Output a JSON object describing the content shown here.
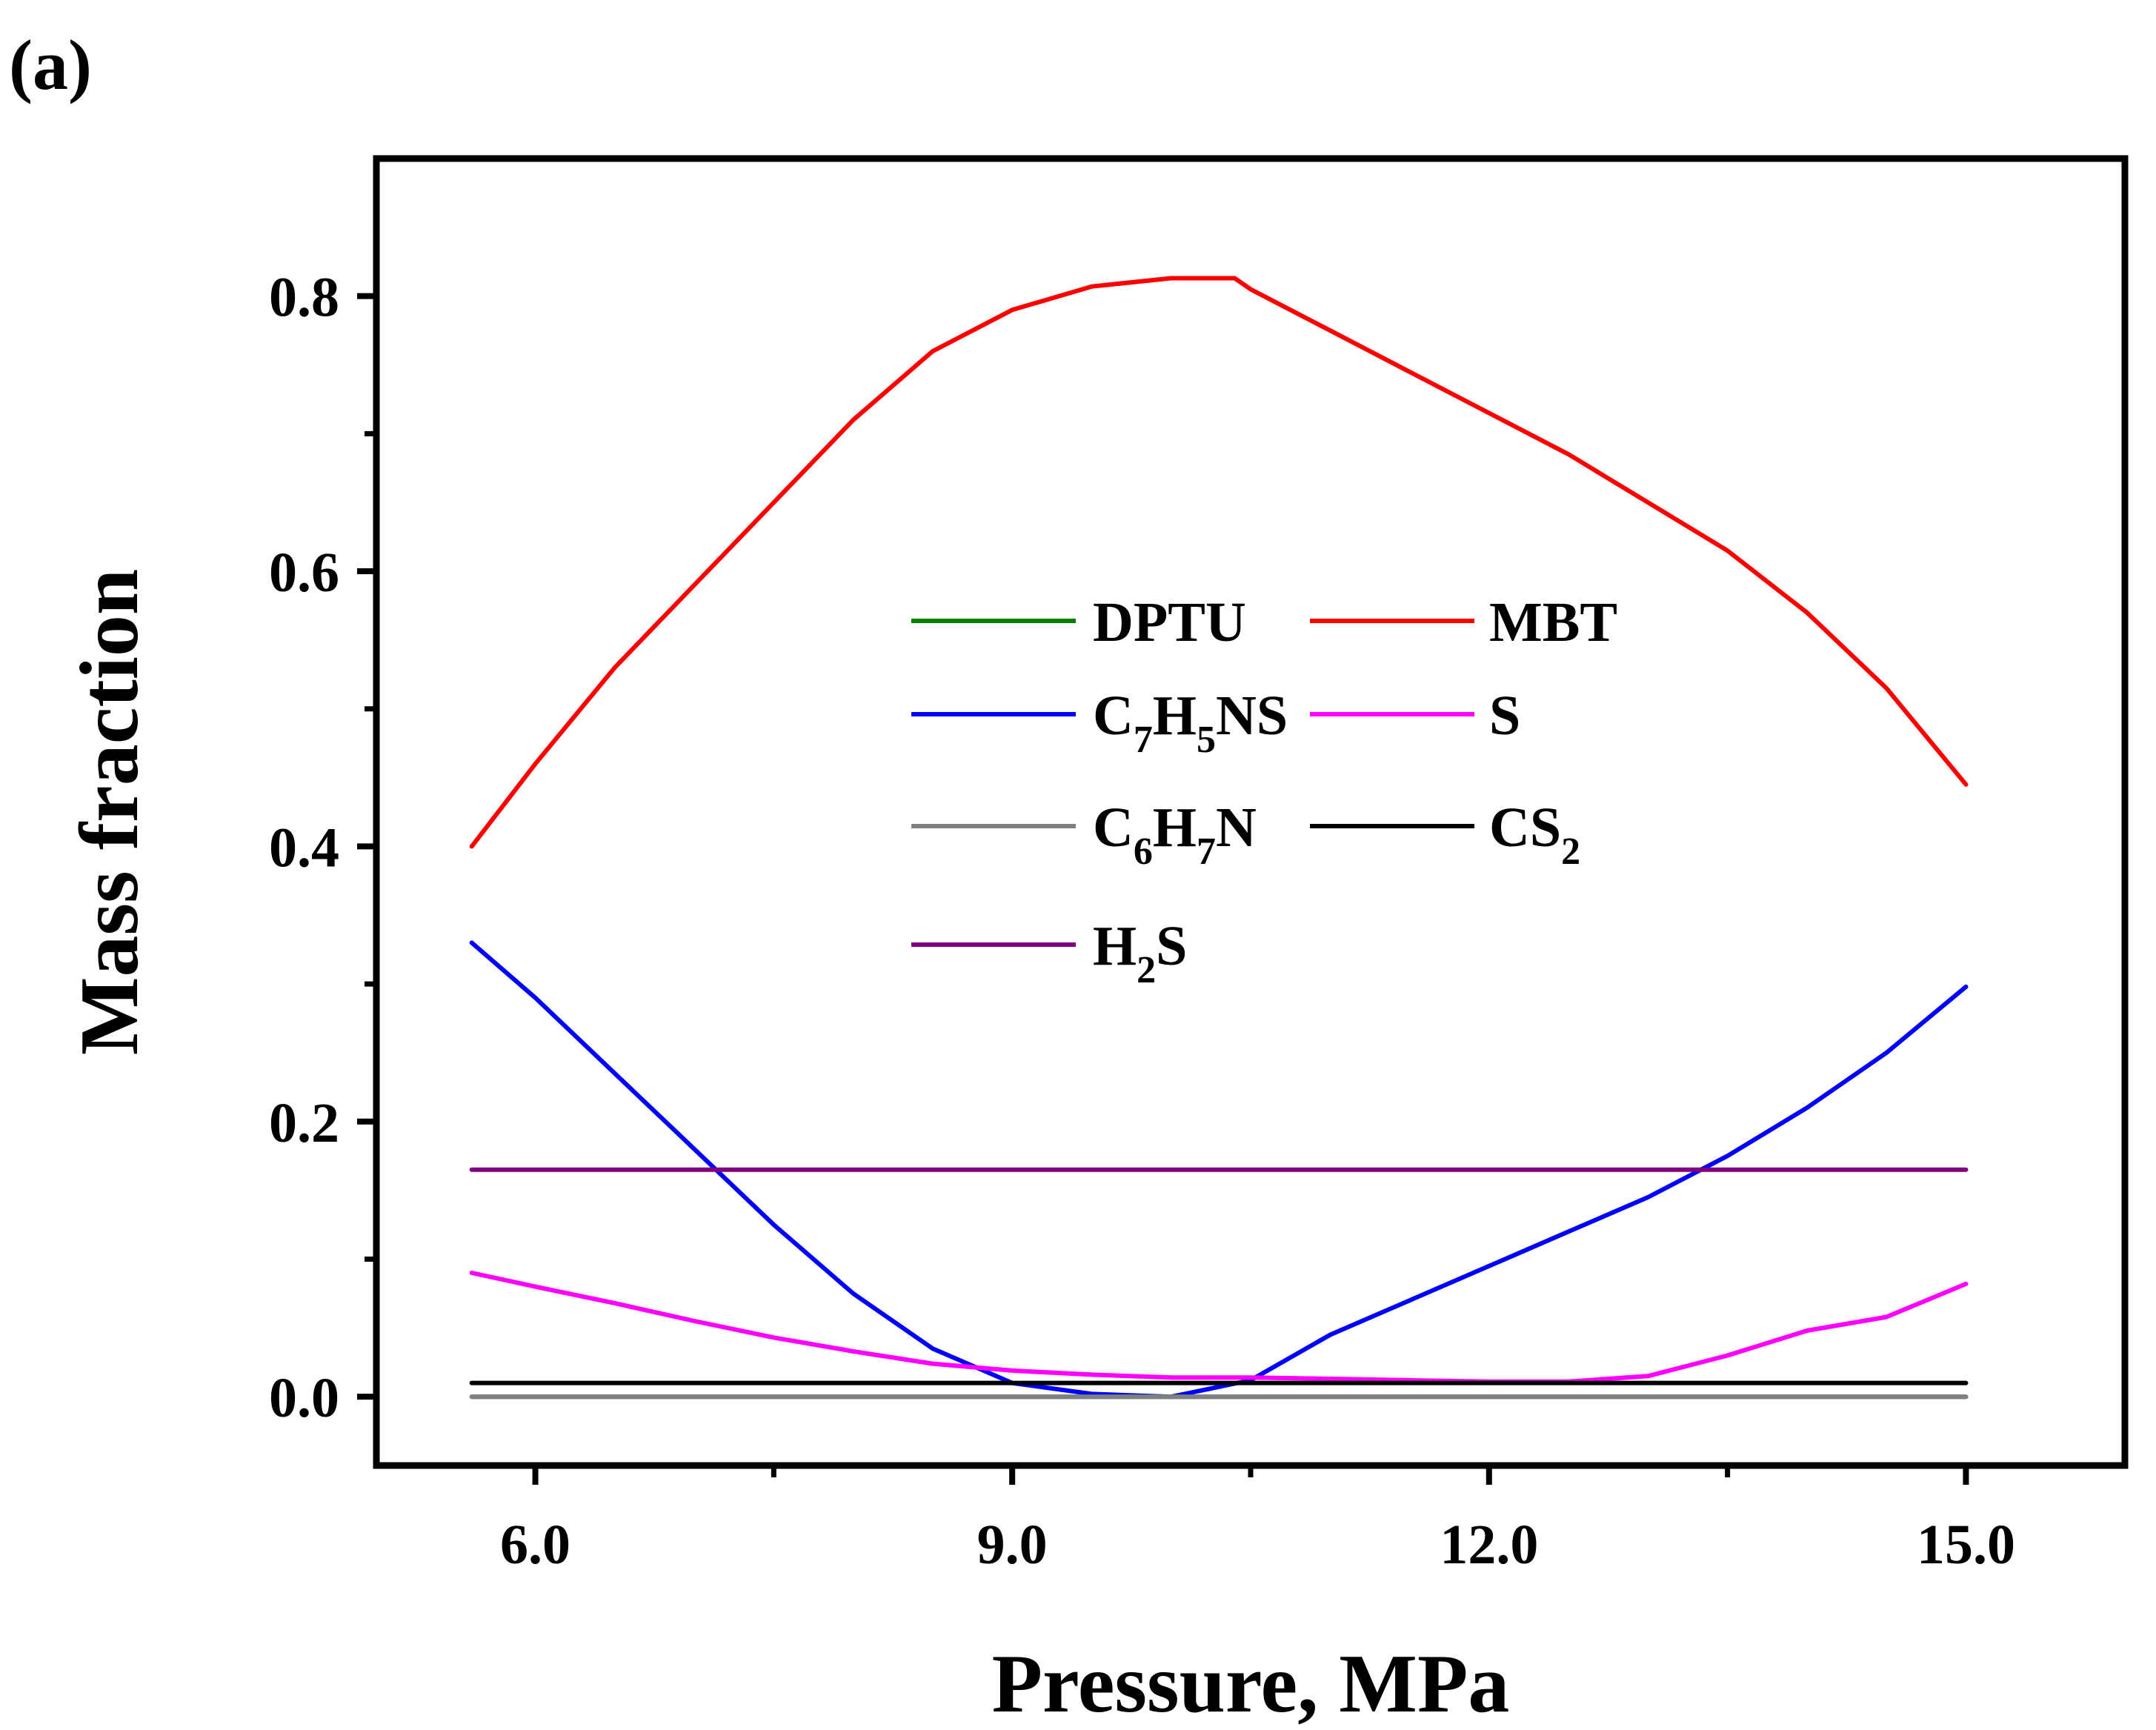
{
  "panel_label": "(a)",
  "chart_data": {
    "type": "line",
    "title": "",
    "xlabel": "Pressure, MPa",
    "ylabel": "Mass fraction",
    "xlim": [
      5.0,
      16.0
    ],
    "ylim": [
      -0.05,
      0.9
    ],
    "x_ticks": [
      {
        "value": 6.0,
        "label": "6.0"
      },
      {
        "value": 9.0,
        "label": "9.0"
      },
      {
        "value": 12.0,
        "label": "12.0"
      },
      {
        "value": 15.0,
        "label": "15.0"
      }
    ],
    "y_ticks": [
      {
        "value": 0.0,
        "label": "0.0"
      },
      {
        "value": 0.2,
        "label": "0.2"
      },
      {
        "value": 0.4,
        "label": "0.4"
      },
      {
        "value": 0.6,
        "label": "0.6"
      },
      {
        "value": 0.8,
        "label": "0.8"
      }
    ],
    "x_minor_ticks": [
      7.5,
      10.5,
      13.5
    ],
    "y_minor_ticks": [
      0.1,
      0.3,
      0.5,
      0.7
    ],
    "grid": false,
    "legend_position": "center",
    "series": [
      {
        "name": "DPTU",
        "label_parts": [
          [
            "DPTU",
            ""
          ]
        ],
        "color": "#008000",
        "x": [
          5.6,
          15.0
        ],
        "y": [
          0.0,
          0.0
        ]
      },
      {
        "name": "MBT",
        "label_parts": [
          [
            "MBT",
            ""
          ]
        ],
        "color": "#ff0000",
        "x": [
          5.6,
          6.0,
          6.5,
          7.0,
          7.5,
          8.0,
          8.5,
          9.0,
          9.5,
          10.0,
          10.4,
          10.5,
          11.0,
          11.5,
          12.0,
          12.5,
          13.0,
          13.5,
          14.0,
          14.5,
          15.0
        ],
        "y": [
          0.4,
          0.46,
          0.53,
          0.59,
          0.65,
          0.71,
          0.76,
          0.79,
          0.807,
          0.813,
          0.813,
          0.805,
          0.775,
          0.745,
          0.715,
          0.685,
          0.65,
          0.615,
          0.57,
          0.515,
          0.445
        ]
      },
      {
        "name": "C7H5NS",
        "label_parts": [
          [
            "C",
            ""
          ],
          [
            "7",
            "sub"
          ],
          [
            "H",
            ""
          ],
          [
            "5",
            "sub"
          ],
          [
            "NS",
            ""
          ]
        ],
        "color": "#0000ff",
        "x": [
          5.6,
          6.0,
          6.5,
          7.0,
          7.5,
          8.0,
          8.5,
          9.0,
          9.5,
          10.0,
          10.5,
          11.0,
          11.5,
          12.0,
          12.5,
          13.0,
          13.5,
          14.0,
          14.5,
          15.0
        ],
        "y": [
          0.33,
          0.29,
          0.235,
          0.18,
          0.125,
          0.075,
          0.035,
          0.01,
          0.002,
          0.0,
          0.012,
          0.045,
          0.07,
          0.095,
          0.12,
          0.145,
          0.175,
          0.21,
          0.25,
          0.298
        ]
      },
      {
        "name": "S",
        "label_parts": [
          [
            "S",
            ""
          ]
        ],
        "color": "#ff00ff",
        "x": [
          5.6,
          6.0,
          6.5,
          7.0,
          7.5,
          8.0,
          8.5,
          9.0,
          9.5,
          10.0,
          10.5,
          11.0,
          11.5,
          12.0,
          12.5,
          13.0,
          13.5,
          14.0,
          14.5,
          15.0
        ],
        "y": [
          0.09,
          0.08,
          0.068,
          0.055,
          0.043,
          0.033,
          0.024,
          0.019,
          0.016,
          0.014,
          0.014,
          0.013,
          0.012,
          0.011,
          0.011,
          0.015,
          0.03,
          0.048,
          0.058,
          0.082
        ]
      },
      {
        "name": "C6H7N",
        "label_parts": [
          [
            "C",
            ""
          ],
          [
            "6",
            "sub"
          ],
          [
            "H",
            ""
          ],
          [
            "7",
            "sub"
          ],
          [
            "N",
            ""
          ]
        ],
        "color": "#808080",
        "x": [
          5.6,
          15.0
        ],
        "y": [
          0.0,
          0.0
        ]
      },
      {
        "name": "CS2",
        "label_parts": [
          [
            "CS",
            ""
          ],
          [
            "2",
            "sub"
          ]
        ],
        "color": "#000000",
        "x": [
          5.6,
          15.0
        ],
        "y": [
          0.01,
          0.01
        ]
      },
      {
        "name": "H2S",
        "label_parts": [
          [
            "H",
            ""
          ],
          [
            "2",
            "sub"
          ],
          [
            "S",
            ""
          ]
        ],
        "color": "#800080",
        "x": [
          5.6,
          15.0
        ],
        "y": [
          0.165,
          0.165
        ]
      }
    ]
  }
}
